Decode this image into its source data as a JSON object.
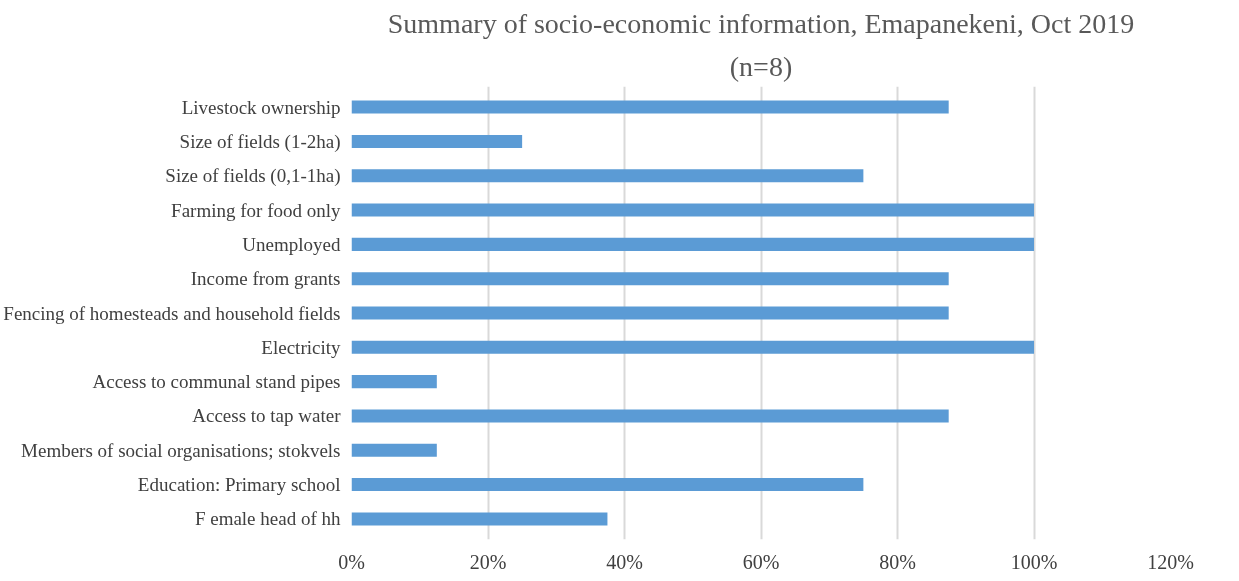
{
  "chart_data": {
    "type": "bar",
    "orientation": "horizontal",
    "title": "Summary of socio-economic information, Emapanekeni, Oct 2019",
    "subtitle": "(n=8)",
    "categories": [
      "Livestock ownership",
      "Size of fields (1-2ha)",
      "Size of fields (0,1-1ha)",
      "Farming for food only",
      "Unemployed",
      "Income from grants",
      "Fencing of homesteads and household fields",
      "Electricity",
      "Access to communal stand pipes",
      "Access to tap water",
      "Members of social organisations; stokvels",
      "Education: Primary school",
      "F emale head of hh"
    ],
    "values": [
      87.5,
      25,
      75,
      100,
      100,
      87.5,
      87.5,
      100,
      12.5,
      87.5,
      12.5,
      75,
      37.5
    ],
    "color": "#5b9bd5",
    "xlim": [
      0,
      120
    ],
    "xticks": [
      {
        "value": 0,
        "label": "0%"
      },
      {
        "value": 20,
        "label": "20%"
      },
      {
        "value": 40,
        "label": "40%"
      },
      {
        "value": 60,
        "label": "60%"
      },
      {
        "value": 80,
        "label": "80%"
      },
      {
        "value": 100,
        "label": "100%"
      },
      {
        "value": 120,
        "label": "120%"
      }
    ],
    "grid": "x"
  }
}
